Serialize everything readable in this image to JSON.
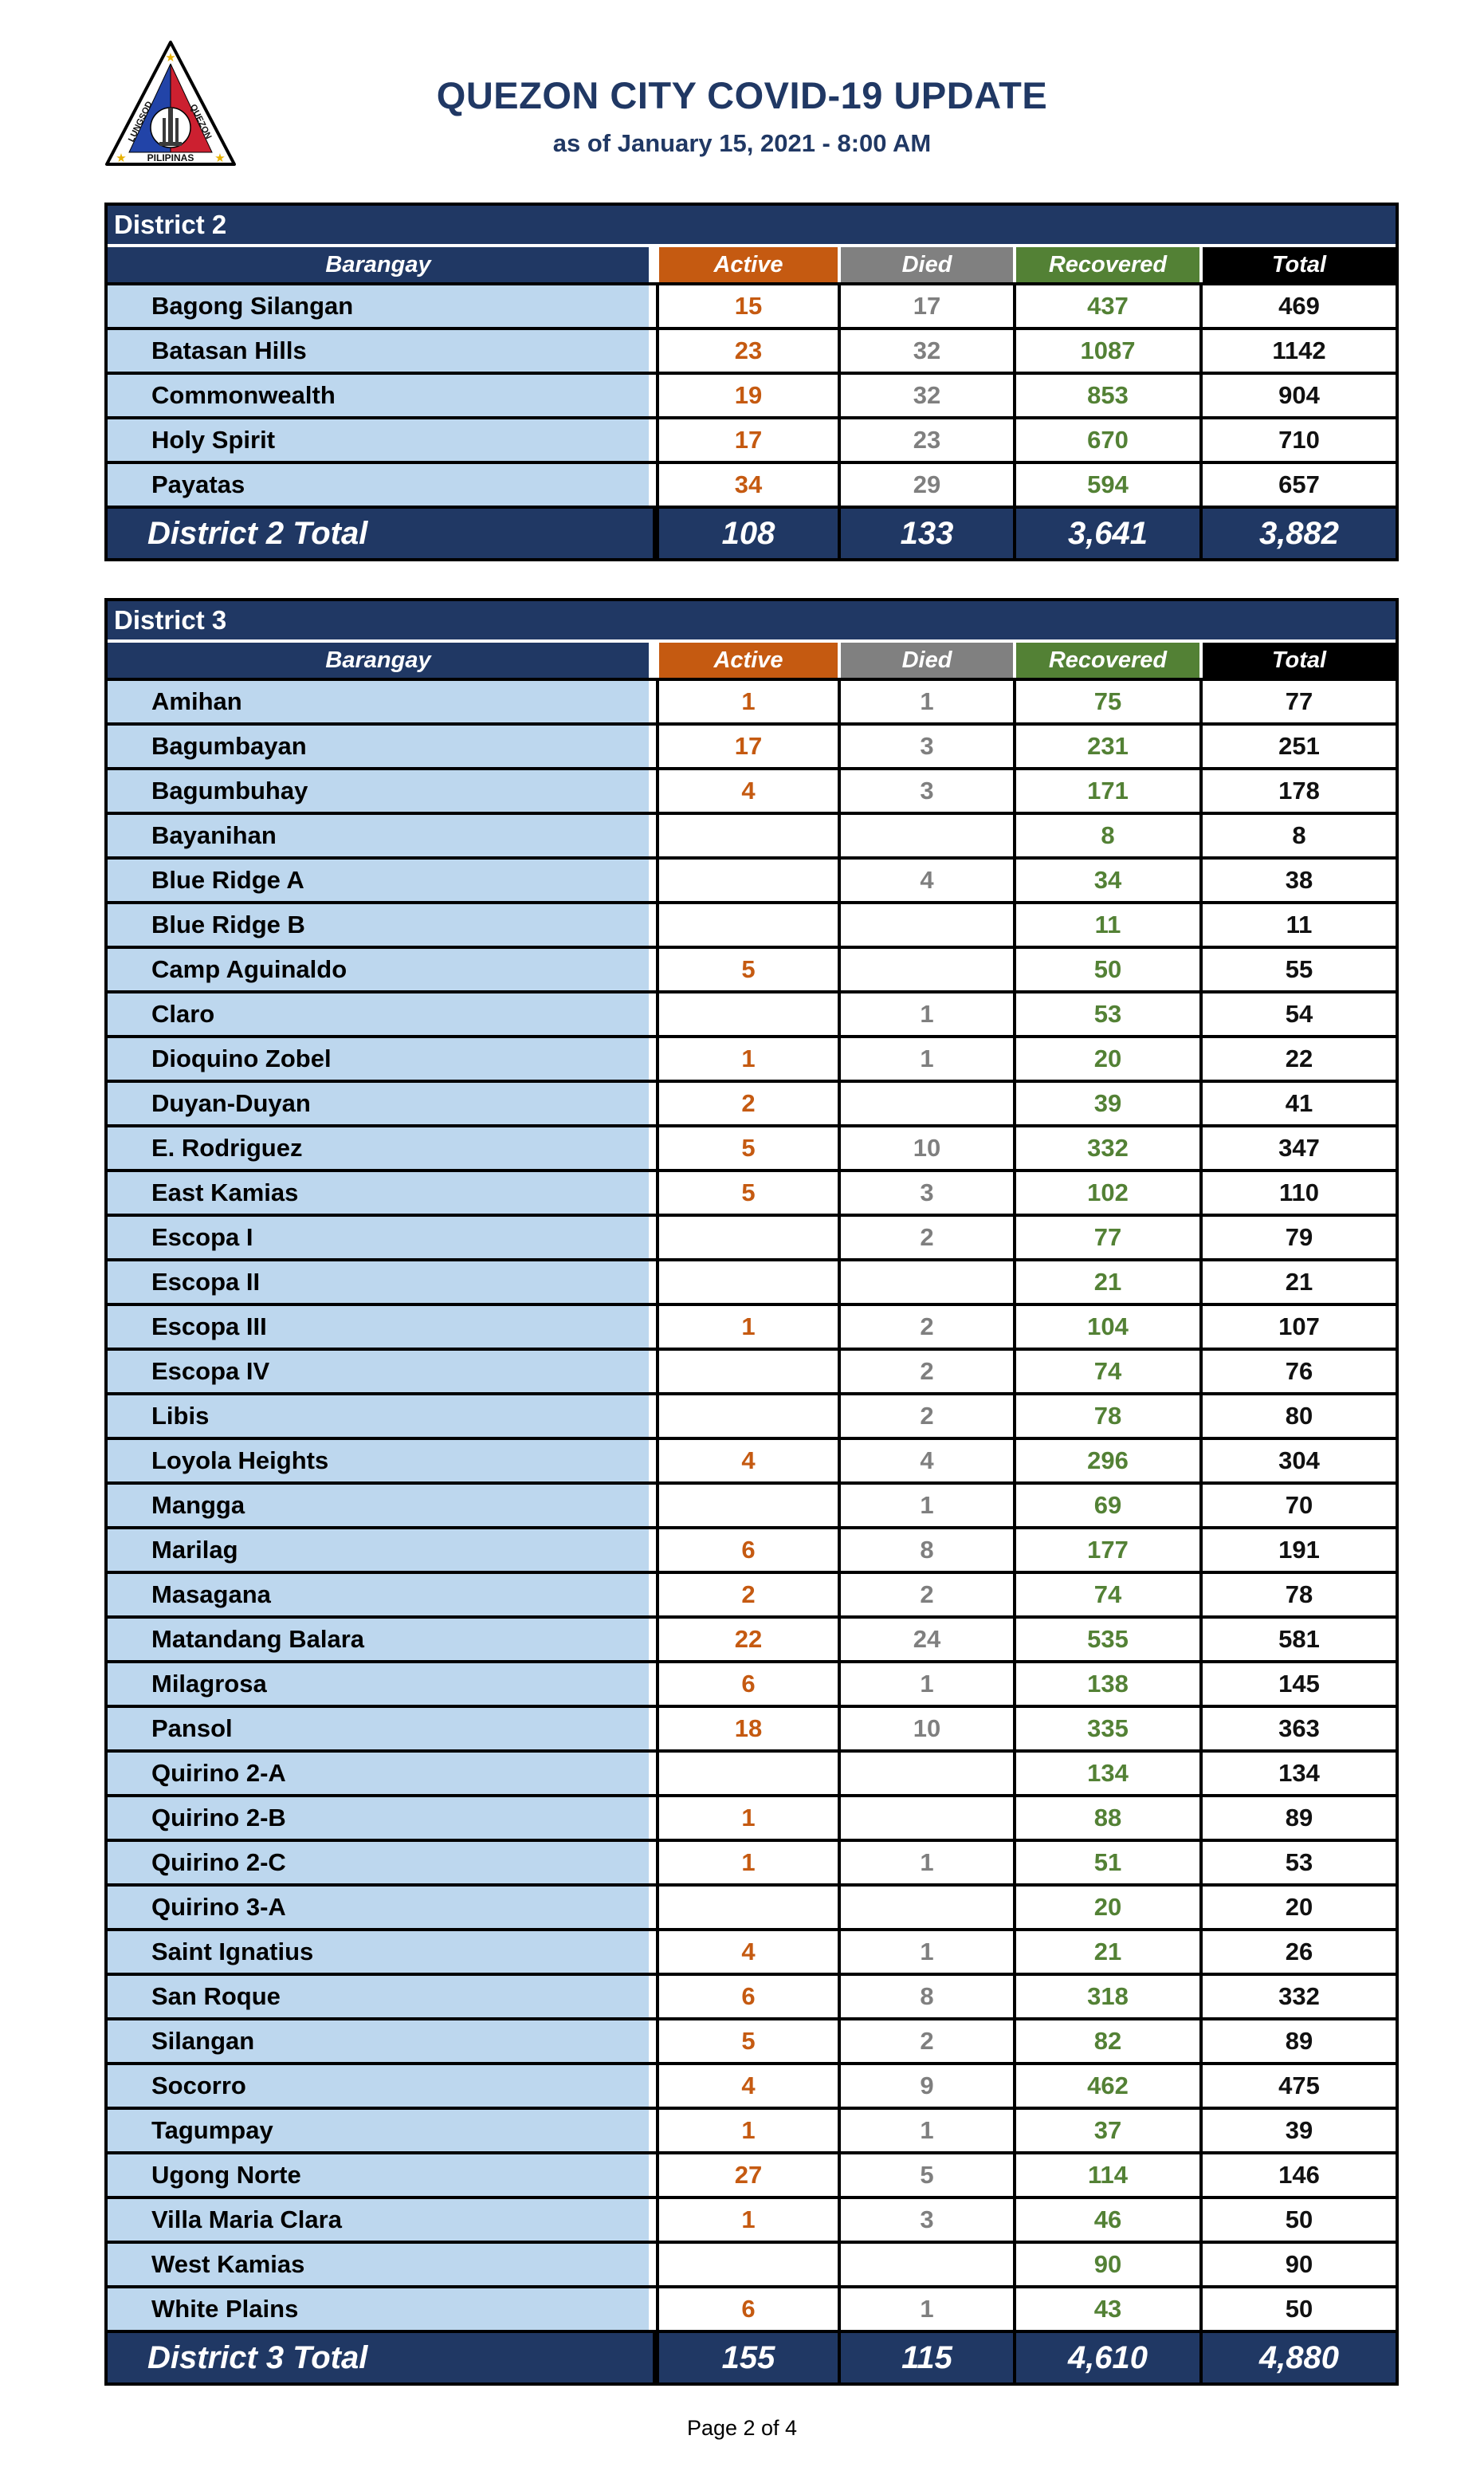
{
  "page": {
    "title": "QUEZON CITY COVID-19 UPDATE",
    "subtitle": "as of January 15, 2021 - 8:00 AM",
    "footer": "Page 2 of 4"
  },
  "logo": {
    "name": "quezon-city-seal",
    "arc_left": "LUNGSOD",
    "arc_right": "QUEZON",
    "bottom_text": "PILIPINAS"
  },
  "colors": {
    "navy": "#203864",
    "orange": "#C55A11",
    "gray": "#808080",
    "green": "#538135",
    "black": "#000000",
    "row_blue": "#BDD7EE",
    "active_text": "#C55A11",
    "died_text": "#7F7F7F",
    "recovered_text": "#538135",
    "total_text": "#111111"
  },
  "columns": [
    "Barangay",
    "Active",
    "Died",
    "Recovered",
    "Total"
  ],
  "districts": [
    {
      "title": "District 2",
      "total_label": "District 2 Total",
      "rows": [
        {
          "barangay": "Bagong Silangan",
          "active": "15",
          "died": "17",
          "recovered": "437",
          "total": "469"
        },
        {
          "barangay": "Batasan Hills",
          "active": "23",
          "died": "32",
          "recovered": "1087",
          "total": "1142"
        },
        {
          "barangay": "Commonwealth",
          "active": "19",
          "died": "32",
          "recovered": "853",
          "total": "904"
        },
        {
          "barangay": "Holy Spirit",
          "active": "17",
          "died": "23",
          "recovered": "670",
          "total": "710"
        },
        {
          "barangay": "Payatas",
          "active": "34",
          "died": "29",
          "recovered": "594",
          "total": "657"
        }
      ],
      "totals": {
        "active": "108",
        "died": "133",
        "recovered": "3,641",
        "total": "3,882"
      }
    },
    {
      "title": "District 3",
      "total_label": "District 3 Total",
      "rows": [
        {
          "barangay": "Amihan",
          "active": "1",
          "died": "1",
          "recovered": "75",
          "total": "77"
        },
        {
          "barangay": "Bagumbayan",
          "active": "17",
          "died": "3",
          "recovered": "231",
          "total": "251"
        },
        {
          "barangay": "Bagumbuhay",
          "active": "4",
          "died": "3",
          "recovered": "171",
          "total": "178"
        },
        {
          "barangay": "Bayanihan",
          "active": "",
          "died": "",
          "recovered": "8",
          "total": "8"
        },
        {
          "barangay": "Blue Ridge A",
          "active": "",
          "died": "4",
          "recovered": "34",
          "total": "38"
        },
        {
          "barangay": "Blue Ridge B",
          "active": "",
          "died": "",
          "recovered": "11",
          "total": "11"
        },
        {
          "barangay": "Camp Aguinaldo",
          "active": "5",
          "died": "",
          "recovered": "50",
          "total": "55"
        },
        {
          "barangay": "Claro",
          "active": "",
          "died": "1",
          "recovered": "53",
          "total": "54"
        },
        {
          "barangay": "Dioquino Zobel",
          "active": "1",
          "died": "1",
          "recovered": "20",
          "total": "22"
        },
        {
          "barangay": "Duyan-Duyan",
          "active": "2",
          "died": "",
          "recovered": "39",
          "total": "41"
        },
        {
          "barangay": "E. Rodriguez",
          "active": "5",
          "died": "10",
          "recovered": "332",
          "total": "347"
        },
        {
          "barangay": "East Kamias",
          "active": "5",
          "died": "3",
          "recovered": "102",
          "total": "110"
        },
        {
          "barangay": "Escopa I",
          "active": "",
          "died": "2",
          "recovered": "77",
          "total": "79"
        },
        {
          "barangay": "Escopa II",
          "active": "",
          "died": "",
          "recovered": "21",
          "total": "21"
        },
        {
          "barangay": "Escopa III",
          "active": "1",
          "died": "2",
          "recovered": "104",
          "total": "107"
        },
        {
          "barangay": "Escopa IV",
          "active": "",
          "died": "2",
          "recovered": "74",
          "total": "76"
        },
        {
          "barangay": "Libis",
          "active": "",
          "died": "2",
          "recovered": "78",
          "total": "80"
        },
        {
          "barangay": "Loyola Heights",
          "active": "4",
          "died": "4",
          "recovered": "296",
          "total": "304"
        },
        {
          "barangay": "Mangga",
          "active": "",
          "died": "1",
          "recovered": "69",
          "total": "70"
        },
        {
          "barangay": "Marilag",
          "active": "6",
          "died": "8",
          "recovered": "177",
          "total": "191"
        },
        {
          "barangay": "Masagana",
          "active": "2",
          "died": "2",
          "recovered": "74",
          "total": "78"
        },
        {
          "barangay": "Matandang Balara",
          "active": "22",
          "died": "24",
          "recovered": "535",
          "total": "581"
        },
        {
          "barangay": "Milagrosa",
          "active": "6",
          "died": "1",
          "recovered": "138",
          "total": "145"
        },
        {
          "barangay": "Pansol",
          "active": "18",
          "died": "10",
          "recovered": "335",
          "total": "363"
        },
        {
          "barangay": "Quirino 2-A",
          "active": "",
          "died": "",
          "recovered": "134",
          "total": "134"
        },
        {
          "barangay": "Quirino 2-B",
          "active": "1",
          "died": "",
          "recovered": "88",
          "total": "89"
        },
        {
          "barangay": "Quirino 2-C",
          "active": "1",
          "died": "1",
          "recovered": "51",
          "total": "53"
        },
        {
          "barangay": "Quirino 3-A",
          "active": "",
          "died": "",
          "recovered": "20",
          "total": "20"
        },
        {
          "barangay": "Saint Ignatius",
          "active": "4",
          "died": "1",
          "recovered": "21",
          "total": "26"
        },
        {
          "barangay": "San Roque",
          "active": "6",
          "died": "8",
          "recovered": "318",
          "total": "332"
        },
        {
          "barangay": "Silangan",
          "active": "5",
          "died": "2",
          "recovered": "82",
          "total": "89"
        },
        {
          "barangay": "Socorro",
          "active": "4",
          "died": "9",
          "recovered": "462",
          "total": "475"
        },
        {
          "barangay": "Tagumpay",
          "active": "1",
          "died": "1",
          "recovered": "37",
          "total": "39"
        },
        {
          "barangay": "Ugong Norte",
          "active": "27",
          "died": "5",
          "recovered": "114",
          "total": "146"
        },
        {
          "barangay": "Villa Maria Clara",
          "active": "1",
          "died": "3",
          "recovered": "46",
          "total": "50"
        },
        {
          "barangay": "West Kamias",
          "active": "",
          "died": "",
          "recovered": "90",
          "total": "90"
        },
        {
          "barangay": "White Plains",
          "active": "6",
          "died": "1",
          "recovered": "43",
          "total": "50"
        }
      ],
      "totals": {
        "active": "155",
        "died": "115",
        "recovered": "4,610",
        "total": "4,880"
      }
    }
  ]
}
